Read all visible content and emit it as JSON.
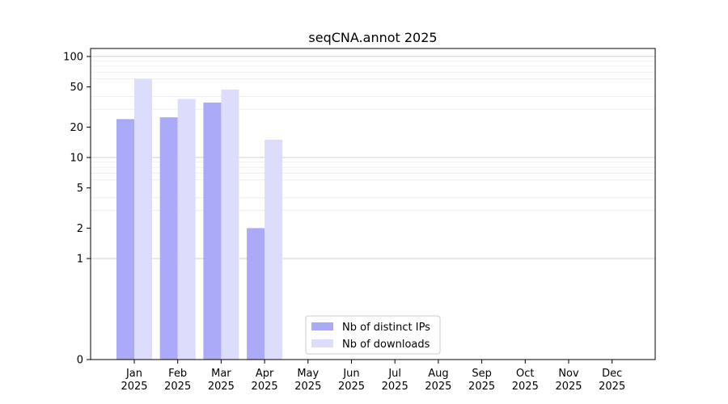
{
  "chart_data": {
    "type": "bar",
    "title": "seqCNA.annot 2025",
    "xlabel": "",
    "ylabel": "",
    "yscale": "symlog",
    "ylim": [
      0,
      120
    ],
    "yticks": [
      0,
      1,
      2,
      5,
      10,
      20,
      50,
      100
    ],
    "grid": "y",
    "categories": [
      "Jan\n2025",
      "Feb\n2025",
      "Mar\n2025",
      "Apr\n2025",
      "May\n2025",
      "Jun\n2025",
      "Jul\n2025",
      "Aug\n2025",
      "Sep\n2025",
      "Oct\n2025",
      "Nov\n2025",
      "Dec\n2025"
    ],
    "series": [
      {
        "name": "Nb of distinct IPs",
        "color": "#aaaaf8",
        "values": [
          24,
          25,
          35,
          2,
          0,
          0,
          0,
          0,
          0,
          0,
          0,
          0
        ]
      },
      {
        "name": "Nb of downloads",
        "color": "#dcdcfc",
        "values": [
          60,
          38,
          47,
          15,
          0,
          0,
          0,
          0,
          0,
          0,
          0,
          0
        ]
      }
    ],
    "legend_position": "bottom-center"
  }
}
